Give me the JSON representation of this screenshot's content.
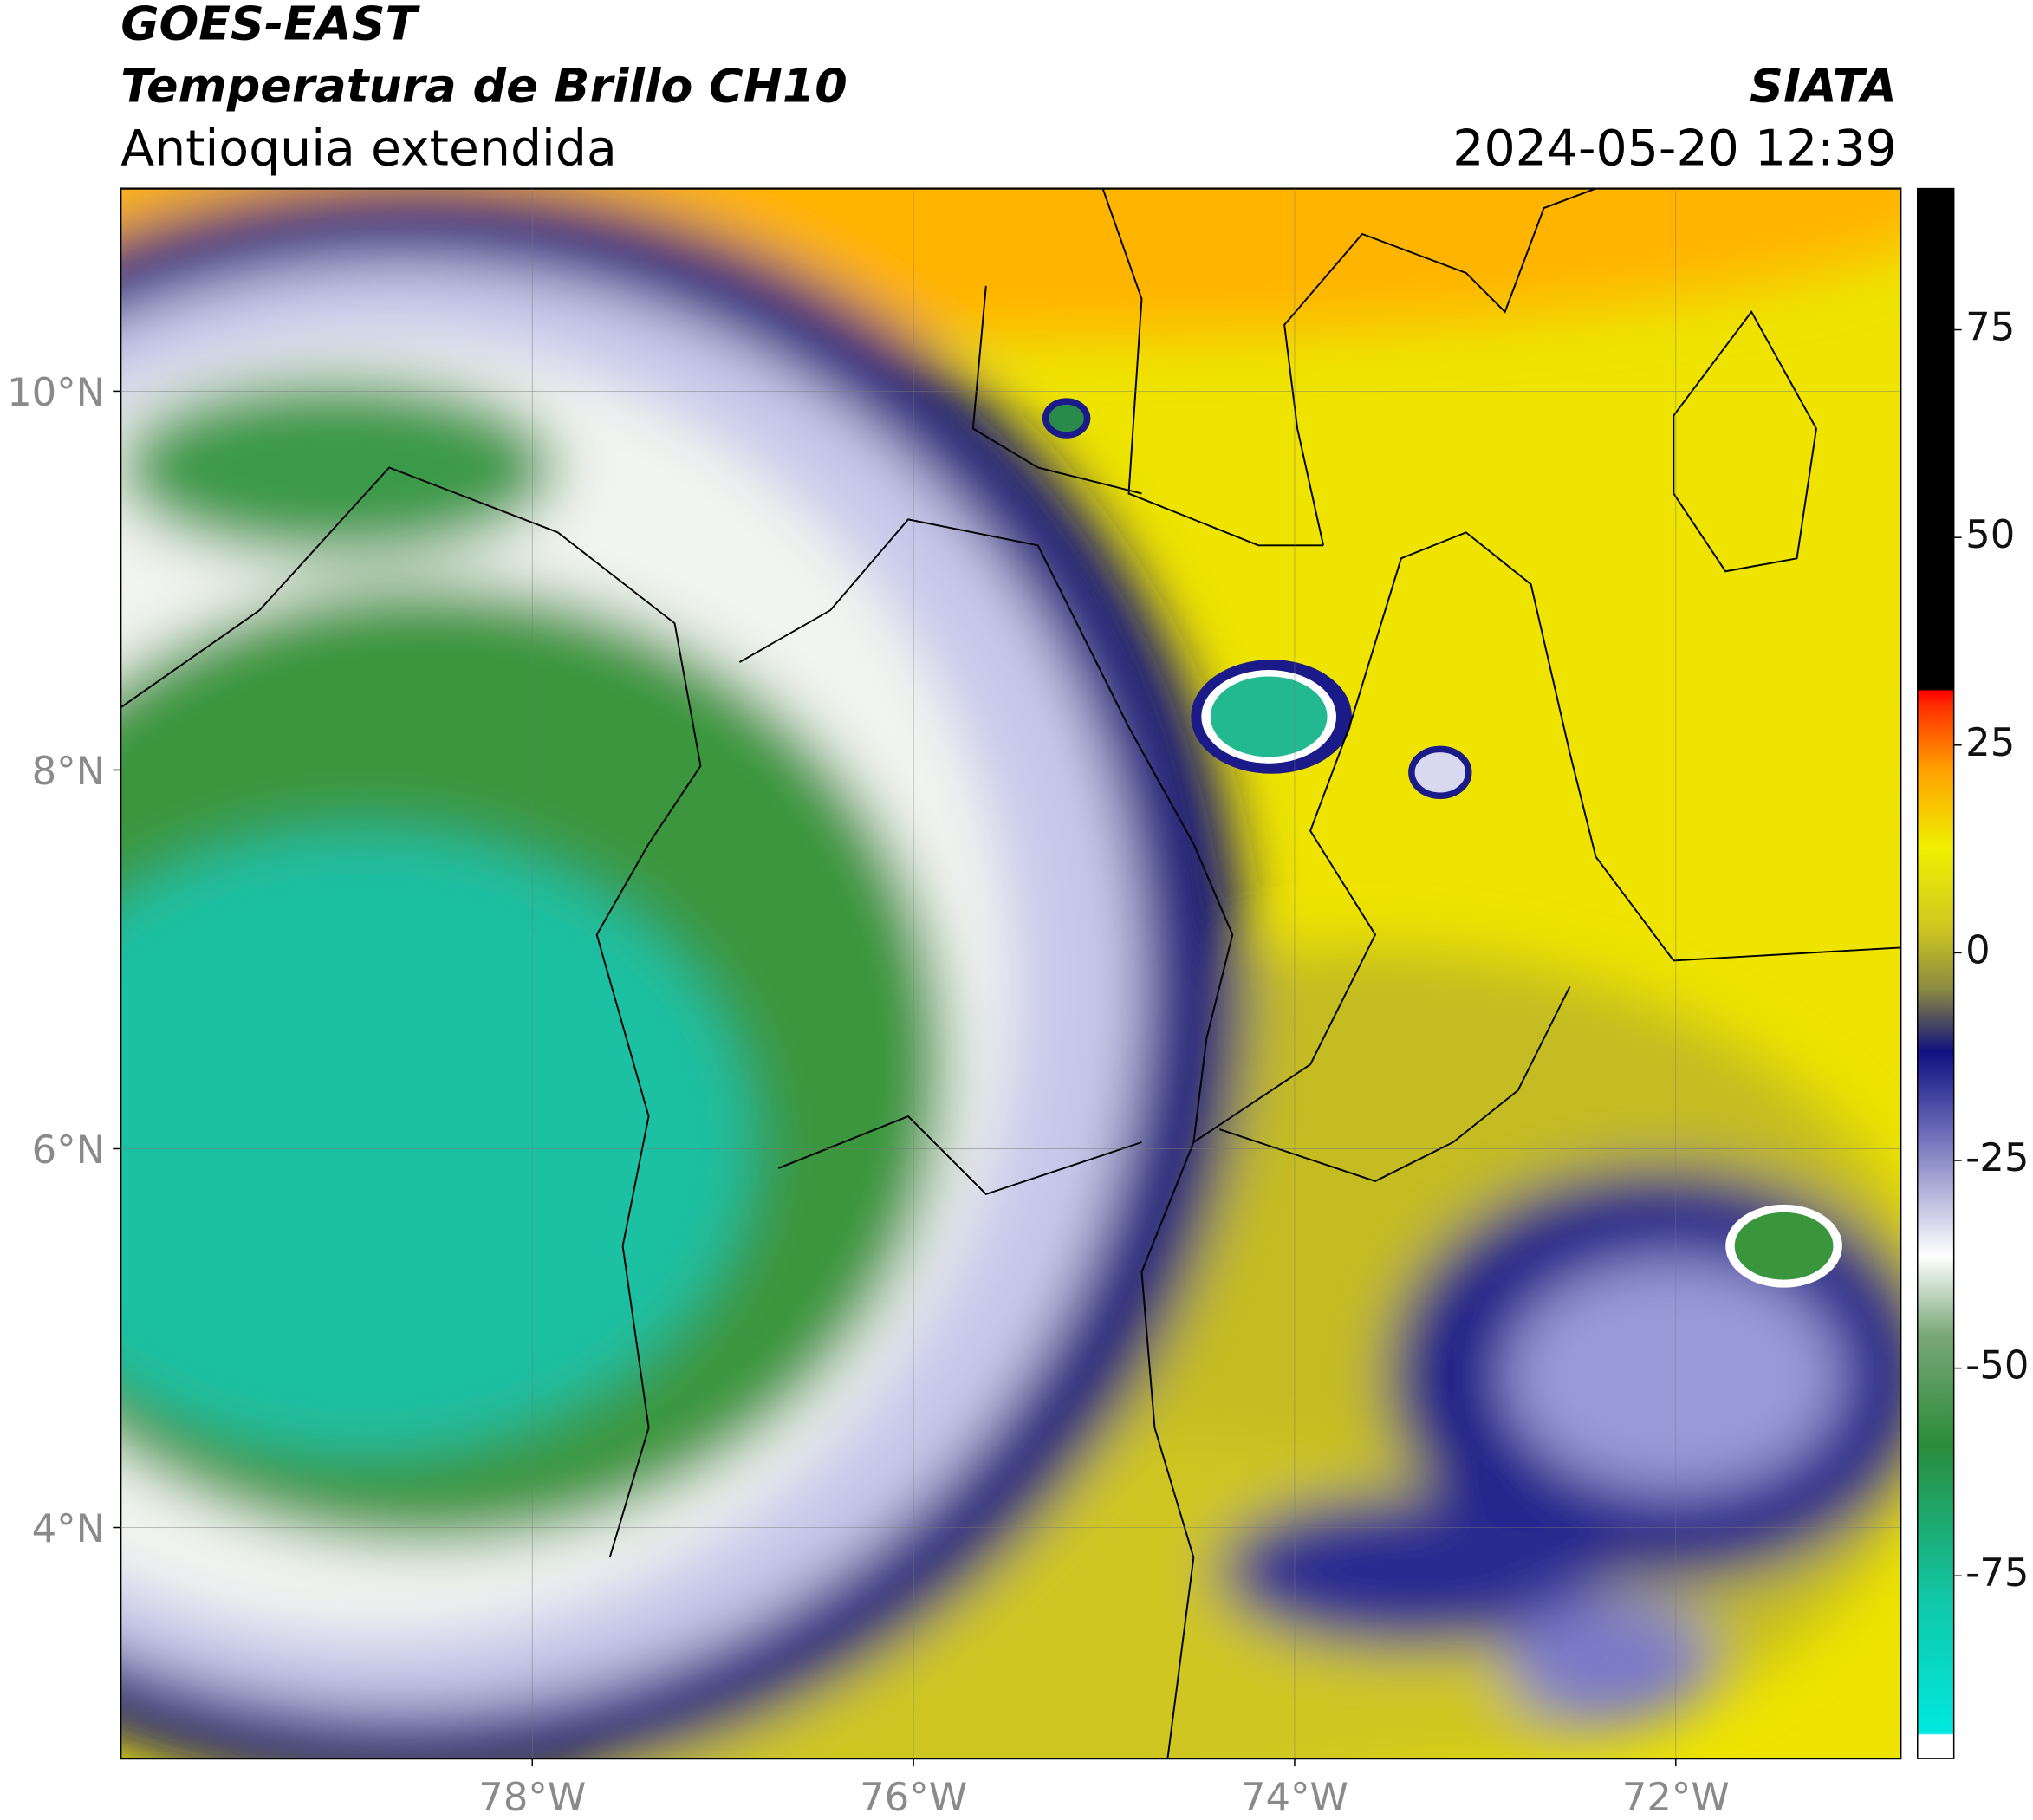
{
  "header": {
    "title": "GOES-EAST",
    "subtitle": "Temperatura de Brillo CH10",
    "region": "Antioquia extendida",
    "source": "SIATA",
    "datetime": "2024-05-20 12:39"
  },
  "map": {
    "xlim": [
      -80.16,
      -70.82
    ],
    "ylim": [
      2.78,
      11.07
    ],
    "xticks": [
      {
        "value": -78,
        "label": "78°W"
      },
      {
        "value": -76,
        "label": "76°W"
      },
      {
        "value": -74,
        "label": "74°W"
      },
      {
        "value": -72,
        "label": "72°W"
      }
    ],
    "yticks": [
      {
        "value": 10,
        "label": "10°N"
      },
      {
        "value": 8,
        "label": "8°N"
      },
      {
        "value": 6,
        "label": "6°N"
      },
      {
        "value": 4,
        "label": "4°N"
      }
    ],
    "grid": true
  },
  "colorbar": {
    "lim": [
      -97,
      92
    ],
    "ticks": [
      75,
      50,
      25,
      0,
      -25,
      -50,
      -75
    ]
  }
}
